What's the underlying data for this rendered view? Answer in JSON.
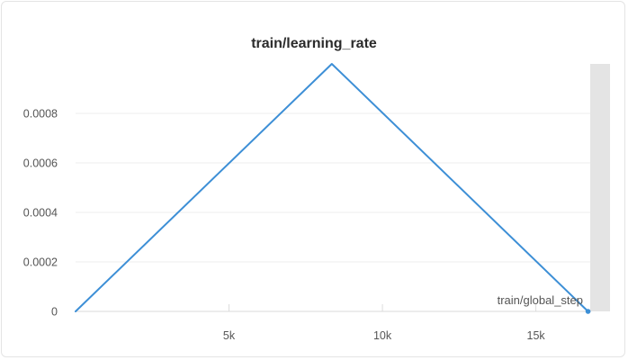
{
  "chart_data": {
    "type": "line",
    "title": "train/learning_rate",
    "xlabel": "train/global_step",
    "ylabel": "",
    "xlim": [
      0,
      16800
    ],
    "ylim": [
      0,
      0.001
    ],
    "x_ticks": [
      {
        "value": 5000,
        "label": "5k"
      },
      {
        "value": 10000,
        "label": "10k"
      },
      {
        "value": 15000,
        "label": "15k"
      }
    ],
    "y_ticks": [
      {
        "value": 0,
        "label": "0"
      },
      {
        "value": 0.0002,
        "label": "0.0002"
      },
      {
        "value": 0.0004,
        "label": "0.0004"
      },
      {
        "value": 0.0006,
        "label": "0.0006"
      },
      {
        "value": 0.0008,
        "label": "0.0008"
      }
    ],
    "grid": true,
    "series": [
      {
        "color": "#3d8fd6",
        "x": [
          0,
          8350,
          16700
        ],
        "y": [
          0,
          0.001,
          0
        ]
      }
    ]
  }
}
